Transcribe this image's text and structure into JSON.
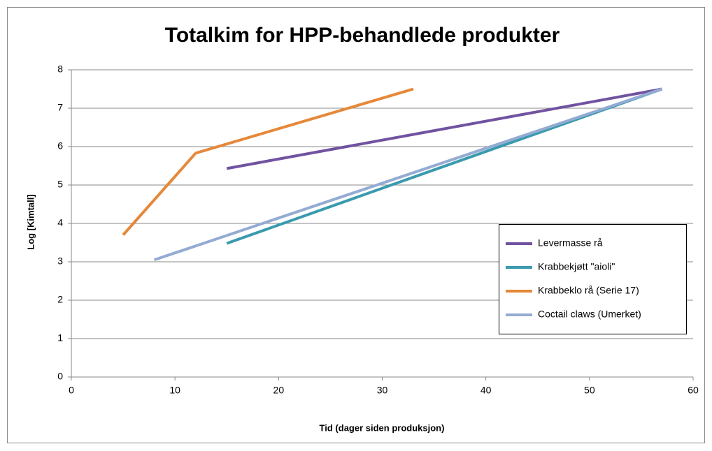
{
  "chart_data": {
    "type": "line",
    "title": "Totalkim for HPP-behandlede produkter",
    "x_label": "Tid (dager siden produksjon)",
    "y_label": "Log [Kimtall]",
    "xlim": [
      0,
      60
    ],
    "xticks": [
      0,
      10,
      20,
      30,
      40,
      50,
      60
    ],
    "ylim": [
      0,
      8
    ],
    "yticks": [
      0,
      1,
      2,
      3,
      4,
      5,
      6,
      7,
      8
    ],
    "grid": true,
    "legend": "right",
    "series": [
      {
        "name": "Levermasse rå",
        "color": "#7153a0",
        "x": [
          15,
          57
        ],
        "values": [
          5.43,
          7.5
        ]
      },
      {
        "name": "Krabbekjøtt \"aioli\"",
        "color": "#3a9aae",
        "x": [
          15,
          57
        ],
        "values": [
          3.48,
          7.5
        ]
      },
      {
        "name": "Krabbeklo rå (Serie 17)",
        "color": "#e6883a",
        "x": [
          5,
          12,
          33
        ],
        "values": [
          3.7,
          5.83,
          7.5
        ]
      },
      {
        "name": "Coctail claws (Umerket)",
        "color": "#94abd2",
        "x": [
          8,
          57
        ],
        "values": [
          3.05,
          7.5
        ]
      }
    ]
  }
}
